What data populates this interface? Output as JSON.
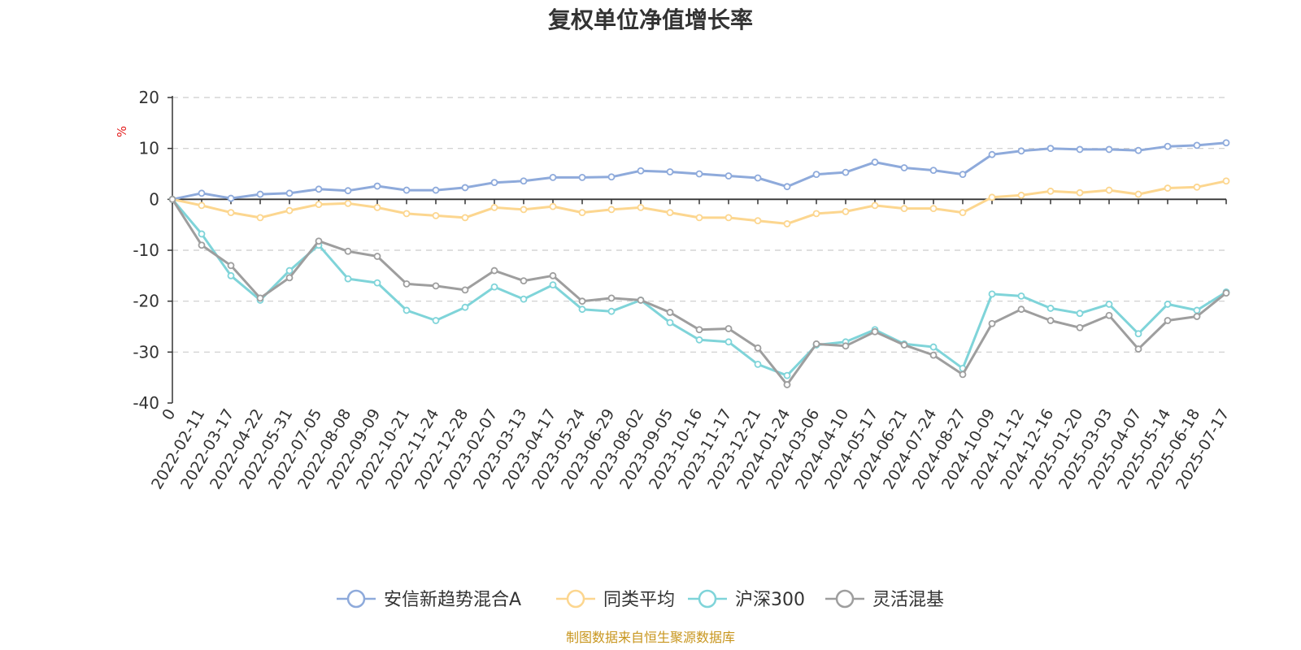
{
  "chart_data": {
    "type": "line",
    "title": "复权单位净值增长率",
    "ylabel": "%",
    "ylim": [
      -40,
      20
    ],
    "yticks": [
      20,
      10,
      0,
      -10,
      -20,
      -30,
      -40
    ],
    "grid": true,
    "legend_position": "bottom-center",
    "x": [
      "0",
      "2022-02-11",
      "2022-03-17",
      "2022-04-22",
      "2022-05-31",
      "2022-07-05",
      "2022-08-08",
      "2022-09-09",
      "2022-10-21",
      "2022-11-24",
      "2022-12-28",
      "2023-02-07",
      "2023-03-13",
      "2023-04-17",
      "2023-05-24",
      "2023-06-29",
      "2023-08-02",
      "2023-09-05",
      "2023-10-16",
      "2023-11-17",
      "2023-12-21",
      "2024-01-24",
      "2024-03-06",
      "2024-04-10",
      "2024-05-17",
      "2024-06-21",
      "2024-07-24",
      "2024-08-27",
      "2024-10-09",
      "2024-11-12",
      "2024-12-16",
      "2025-01-20",
      "2025-03-03",
      "2025-04-07",
      "2025-05-14",
      "2025-06-18",
      "2025-07-17"
    ],
    "series": [
      {
        "name": "安信新趋势混合A",
        "color": "#8eaadb",
        "values": [
          0,
          1.2,
          0.2,
          1.0,
          1.2,
          2.0,
          1.7,
          2.6,
          1.8,
          1.8,
          2.3,
          3.3,
          3.6,
          4.3,
          4.3,
          4.4,
          5.6,
          5.4,
          5.0,
          4.6,
          4.2,
          2.5,
          4.9,
          5.3,
          7.3,
          6.2,
          5.7,
          4.9,
          8.8,
          9.5,
          10.0,
          9.8,
          9.8,
          9.6,
          10.4,
          10.6,
          11.1
        ]
      },
      {
        "name": "同类平均",
        "color": "#fcd68f",
        "values": [
          0,
          -1.2,
          -2.6,
          -3.6,
          -2.2,
          -1.0,
          -0.8,
          -1.6,
          -2.8,
          -3.2,
          -3.6,
          -1.6,
          -2.0,
          -1.4,
          -2.6,
          -2.0,
          -1.6,
          -2.6,
          -3.6,
          -3.6,
          -4.2,
          -4.8,
          -2.8,
          -2.4,
          -1.2,
          -1.8,
          -1.8,
          -2.6,
          0.4,
          0.8,
          1.6,
          1.3,
          1.8,
          1.0,
          2.2,
          2.4,
          3.6
        ]
      },
      {
        "name": "沪深300",
        "color": "#7fd4d9",
        "values": [
          0,
          -6.8,
          -15.0,
          -19.8,
          -14.0,
          -9.0,
          -15.6,
          -16.4,
          -21.8,
          -23.8,
          -21.2,
          -17.2,
          -19.6,
          -16.8,
          -21.6,
          -22.0,
          -19.8,
          -24.2,
          -27.6,
          -28.0,
          -32.4,
          -34.6,
          -28.6,
          -28.0,
          -25.6,
          -28.4,
          -29.0,
          -33.2,
          -18.6,
          -19.0,
          -21.4,
          -22.4,
          -20.6,
          -26.4,
          -20.6,
          -21.8,
          -18.2
        ]
      },
      {
        "name": "灵活混基",
        "color": "#9e9e9e",
        "values": [
          0,
          -9.0,
          -13.0,
          -19.4,
          -15.4,
          -8.2,
          -10.2,
          -11.2,
          -16.6,
          -17.0,
          -17.8,
          -14.0,
          -16.0,
          -15.0,
          -20.0,
          -19.4,
          -19.8,
          -22.2,
          -25.6,
          -25.4,
          -29.2,
          -36.4,
          -28.4,
          -28.8,
          -26.0,
          -28.6,
          -30.6,
          -34.4,
          -24.4,
          -21.6,
          -23.8,
          -25.2,
          -22.8,
          -29.4,
          -23.8,
          -23.0,
          -18.4
        ]
      }
    ]
  },
  "source_text": "制图数据来自恒生聚源数据库"
}
